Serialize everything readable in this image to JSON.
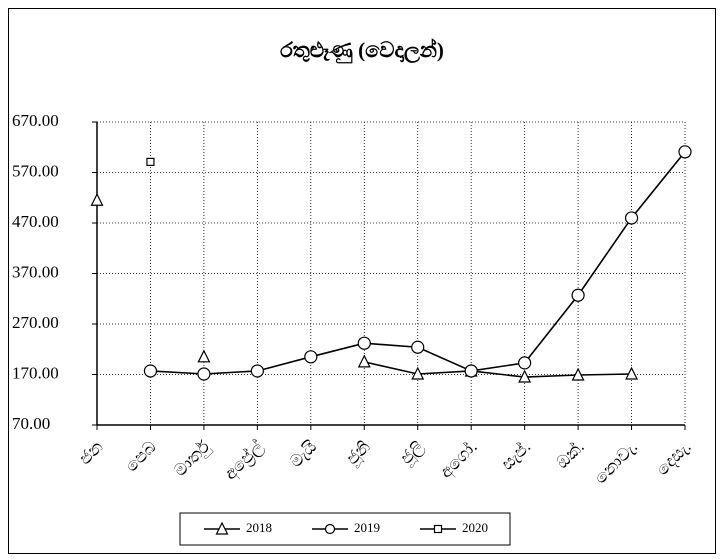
{
  "chart_data": {
    "type": "line",
    "title": "රතුළූණු (වෙදාලන්)",
    "categories": [
      "ජන",
      "පෙබ",
      "මාර්තු",
      "අප්‍රේල්",
      "මැයි",
      "ජූනි",
      "ජූලි",
      "අගෝ.",
      "සැප්.",
      "ඔක්.",
      "නොවැ.",
      "දෙසැ."
    ],
    "series": [
      {
        "name": "2018",
        "color": "#000000",
        "marker": "triangle",
        "values": [
          515,
          null,
          205,
          null,
          null,
          195,
          171,
          177,
          165,
          169,
          171,
          null
        ]
      },
      {
        "name": "2019",
        "color": "#000000",
        "marker": "circle",
        "values": [
          null,
          177,
          171,
          177,
          205,
          232,
          224,
          177,
          193,
          327,
          480,
          611
        ]
      },
      {
        "name": "2020",
        "color": "#000000",
        "marker": "square",
        "values": [
          null,
          591,
          null,
          null,
          null,
          null,
          null,
          null,
          null,
          null,
          null,
          null
        ]
      }
    ],
    "ylim": [
      70,
      670
    ],
    "yticks": [
      {
        "value": 70,
        "label": "70.00"
      },
      {
        "value": 170,
        "label": "170.00"
      },
      {
        "value": 270,
        "label": "270.00"
      },
      {
        "value": 370,
        "label": "370.00"
      },
      {
        "value": 470,
        "label": "470.00"
      },
      {
        "value": 570,
        "label": "570.00"
      },
      {
        "value": 670,
        "label": "670.00"
      }
    ],
    "grid": true,
    "legend": "bottom"
  }
}
